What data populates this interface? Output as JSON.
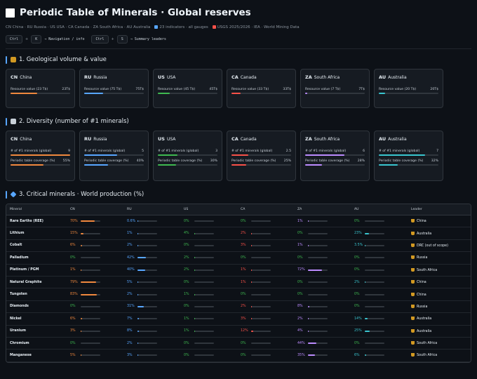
{
  "header": {
    "title": "Periodic Table of Minerals · Global reserves",
    "subtitle_countries": "CN China · RU Russia · US USA · CA Canada · ZA South Africa · AU Australia",
    "subtitle_indicators": "23 indicators · all gauges",
    "subtitle_sources": "USGS 2025/2026 · IEA · World Mining Data",
    "shortcut1_key1": "Ctrl",
    "shortcut1_key2": "K",
    "shortcut1_desc": "→ Navigation / info",
    "shortcut2_key1": "Ctrl",
    "shortcut2_key2": "S",
    "shortcut2_desc": "→ Summary leaders"
  },
  "colors": {
    "CN": "#f0883e",
    "RU": "#58a6ff",
    "US": "#3fb950",
    "CA": "#f85149",
    "ZA": "#bc8cff",
    "AU": "#39c5cf"
  },
  "section1": {
    "title": "1. Geological volume & value",
    "cards": [
      {
        "code": "CN",
        "name": "China",
        "label": "Resource value (23 T$)",
        "value": "23T$",
        "pct": 0.45
      },
      {
        "code": "RU",
        "name": "Russia",
        "label": "Resource value (75 T$)",
        "value": "75T$",
        "pct": 0.32
      },
      {
        "code": "US",
        "name": "USA",
        "label": "Resource value (45 T$)",
        "value": "45T$",
        "pct": 0.2
      },
      {
        "code": "CA",
        "name": "Canada",
        "label": "Resource value (33 T$)",
        "value": "33T$",
        "pct": 0.15
      },
      {
        "code": "ZA",
        "name": "South Africa",
        "label": "Resource value (7 T$)",
        "value": "7T$",
        "pct": 0.04
      },
      {
        "code": "AU",
        "name": "Australia",
        "label": "Resource value (20 T$)",
        "value": "20T$",
        "pct": 0.1
      }
    ]
  },
  "section2": {
    "title": "2. Diversity (number of #1 minerals)",
    "cards": [
      {
        "code": "CN",
        "name": "China",
        "label1": "# of #1 minerals (global)",
        "value1": "9",
        "pct1": 1.0,
        "label2": "Periodic table coverage (%)",
        "value2": "55%",
        "pct2": 0.55
      },
      {
        "code": "RU",
        "name": "Russia",
        "label1": "# of #1 minerals (global)",
        "value1": "5",
        "pct1": 0.55,
        "label2": "Periodic table coverage (%)",
        "value2": "40%",
        "pct2": 0.4
      },
      {
        "code": "US",
        "name": "USA",
        "label1": "# of #1 minerals (global)",
        "value1": "3",
        "pct1": 0.33,
        "label2": "Periodic table coverage (%)",
        "value2": "30%",
        "pct2": 0.3
      },
      {
        "code": "CA",
        "name": "Canada",
        "label1": "# of #1 minerals (global)",
        "value1": "2.5",
        "pct1": 0.28,
        "label2": "Periodic table coverage (%)",
        "value2": "25%",
        "pct2": 0.25
      },
      {
        "code": "ZA",
        "name": "South Africa",
        "label1": "# of #1 minerals (global)",
        "value1": "6",
        "pct1": 0.66,
        "label2": "Periodic table coverage (%)",
        "value2": "28%",
        "pct2": 0.28
      },
      {
        "code": "AU",
        "name": "Australia",
        "label1": "# of #1 minerals (global)",
        "value1": "7",
        "pct1": 0.78,
        "label2": "Periodic table coverage (%)",
        "value2": "32%",
        "pct2": 0.32
      }
    ]
  },
  "section3": {
    "title": "3. Critical minerals · World production (%)",
    "columns": [
      "Mineral",
      "CN",
      "RU",
      "US",
      "CA",
      "ZA",
      "AU",
      "Leader"
    ],
    "rows": [
      {
        "mineral": "Rare Earths (REE)",
        "vals": [
          "70%",
          "0.6%",
          "0%",
          "0%",
          "1%",
          "0%"
        ],
        "nums": [
          70,
          0.6,
          0,
          0,
          1,
          0
        ],
        "leader": "China"
      },
      {
        "mineral": "Lithium",
        "vals": [
          "15%",
          "1%",
          "4%",
          "2%",
          "0%",
          "23%"
        ],
        "nums": [
          15,
          1,
          4,
          2,
          0,
          23
        ],
        "leader": "Australia"
      },
      {
        "mineral": "Cobalt",
        "vals": [
          "6%",
          "2%",
          "0%",
          "3%",
          "1%",
          "3.5%"
        ],
        "nums": [
          6,
          2,
          0,
          3,
          1,
          3.5
        ],
        "leader": "DRC (out of scope)"
      },
      {
        "mineral": "Palladium",
        "vals": [
          "0%",
          "42%",
          "2%",
          "0%",
          "0%",
          "0%"
        ],
        "nums": [
          0,
          42,
          2,
          0,
          0,
          0
        ],
        "leader": "Russia"
      },
      {
        "mineral": "Platinum / PGM",
        "vals": [
          "1%",
          "40%",
          "2%",
          "1%",
          "72%",
          "0%"
        ],
        "nums": [
          1,
          40,
          2,
          1,
          72,
          0
        ],
        "leader": "South Africa"
      },
      {
        "mineral": "Natural Graphite",
        "vals": [
          "79%",
          "5%",
          "0%",
          "1%",
          "0%",
          "2%"
        ],
        "nums": [
          79,
          5,
          0,
          1,
          0,
          2
        ],
        "leader": "China"
      },
      {
        "mineral": "Tungsten",
        "vals": [
          "83%",
          "2%",
          "1%",
          "0%",
          "0%",
          "0%"
        ],
        "nums": [
          83,
          2,
          1,
          0,
          0,
          0
        ],
        "leader": "China"
      },
      {
        "mineral": "Diamonds",
        "vals": [
          "0%",
          "31%",
          "0%",
          "2%",
          "8%",
          "0%"
        ],
        "nums": [
          0,
          31,
          0,
          2,
          8,
          0
        ],
        "leader": "Russia"
      },
      {
        "mineral": "Nickel",
        "vals": [
          "6%",
          "7%",
          "1%",
          "3%",
          "2%",
          "14%"
        ],
        "nums": [
          6,
          7,
          1,
          3,
          2,
          14
        ],
        "leader": "Australia"
      },
      {
        "mineral": "Uranium",
        "vals": [
          "3%",
          "8%",
          "1%",
          "12%",
          "4%",
          "25%"
        ],
        "nums": [
          3,
          8,
          1,
          12,
          4,
          25
        ],
        "leader": "Australia"
      },
      {
        "mineral": "Chromium",
        "vals": [
          "0%",
          "2%",
          "0%",
          "0%",
          "44%",
          "0%"
        ],
        "nums": [
          0,
          2,
          0,
          0,
          44,
          0
        ],
        "leader": "South Africa"
      },
      {
        "mineral": "Manganese",
        "vals": [
          "5%",
          "3%",
          "0%",
          "0%",
          "35%",
          "6%"
        ],
        "nums": [
          5,
          3,
          0,
          0,
          35,
          6
        ],
        "leader": "South Africa"
      }
    ]
  }
}
